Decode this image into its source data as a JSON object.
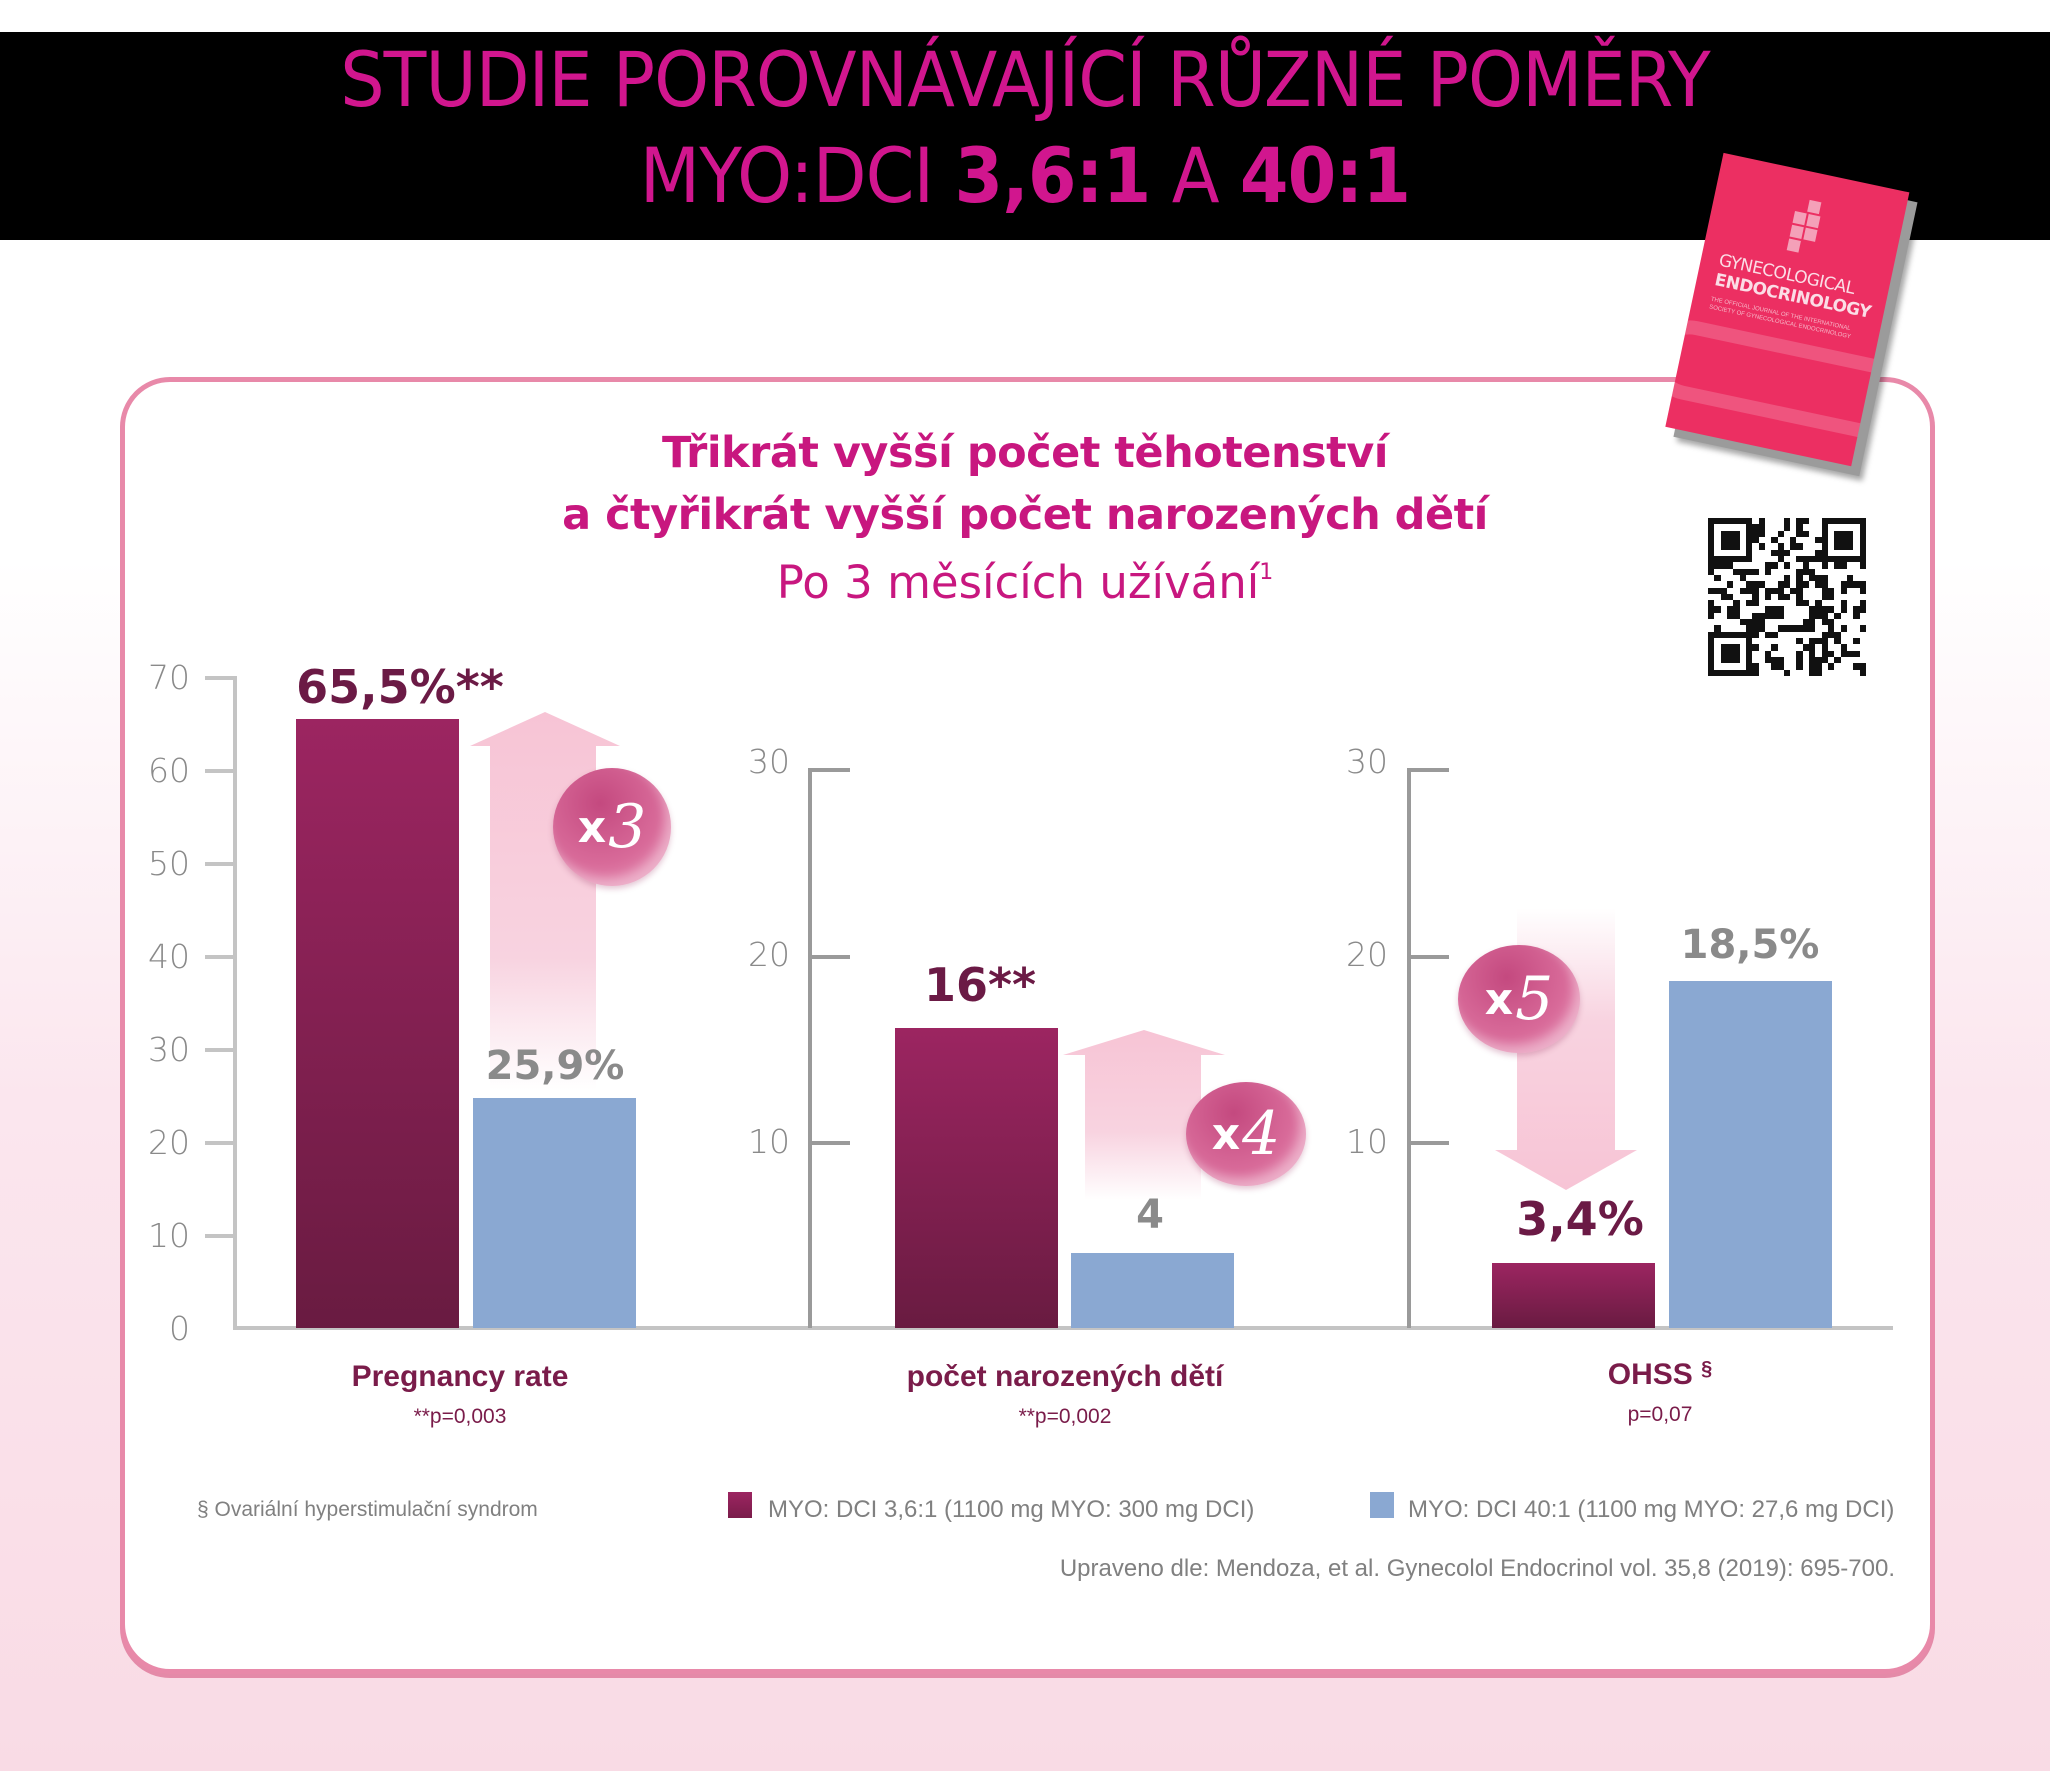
{
  "header": {
    "line1": "STUDIE POROVNÁVAJÍCÍ RŮZNÉ POMĚRY",
    "line2_prefix": "MYO:DCI ",
    "line2_ratio1": "3,6:1",
    "line2_and": " A ",
    "line2_ratio2": "40:1"
  },
  "journal": {
    "title_line1": "GYNECOLOGICAL",
    "title_line2": "ENDOCRINOLOGY",
    "subtitle": "THE OFFICIAL JOURNAL OF THE INTERNATIONAL SOCIETY OF GYNECOLOGICAL ENDOCRINOLOGY"
  },
  "chart_heading": {
    "line1": "Třikrát vyšší počet těhotenství",
    "line2": "a čtyřikrát vyšší počet narozených dětí",
    "line3": "Po 3 měsících užívání",
    "line3_sup": "1"
  },
  "colors": {
    "accent_magenta": "#c8177f",
    "myo_3_6_1": "#8a2155",
    "myo_40_1": "#8aa8d2",
    "card_border": "#e889a9",
    "arrow_pink": "#f7c4d5"
  },
  "chart_data": [
    {
      "type": "bar",
      "title": "Pregnancy rate",
      "note": "**p=0,003",
      "categories": [
        "Pregnancy rate"
      ],
      "series": [
        {
          "name": "MYO: DCI 3,6:1 (1100 mg MYO: 300 mg DCI)",
          "values": [
            65.5
          ],
          "label": "65,5%**"
        },
        {
          "name": "MYO: DCI 40:1 (1100 mg MYO: 27,6 mg DCI)",
          "values": [
            25.9
          ],
          "label": "25,9%"
        }
      ],
      "ylim": [
        0,
        70
      ],
      "yticks": [
        "0",
        "10",
        "20",
        "30",
        "40",
        "50",
        "60",
        "70"
      ],
      "annotation": "x3",
      "annotation_direction": "up"
    },
    {
      "type": "bar",
      "title": "počet narozených dětí",
      "note": "**p=0,002",
      "categories": [
        "počet narozených dětí"
      ],
      "series": [
        {
          "name": "MYO: DCI 3,6:1 (1100 mg MYO: 300 mg DCI)",
          "values": [
            16
          ],
          "label": "16**"
        },
        {
          "name": "MYO: DCI 40:1 (1100 mg MYO: 27,6 mg DCI)",
          "values": [
            4
          ],
          "label": "4"
        }
      ],
      "ylim": [
        0,
        30
      ],
      "yticks": [
        "10",
        "20",
        "30"
      ],
      "annotation": "x4",
      "annotation_direction": "up"
    },
    {
      "type": "bar",
      "title": "OHSS §",
      "note": "p=0,07",
      "categories": [
        "OHSS"
      ],
      "series": [
        {
          "name": "MYO: DCI 3,6:1 (1100 mg MYO: 300 mg DCI)",
          "values": [
            3.4
          ],
          "label": "3,4%"
        },
        {
          "name": "MYO: DCI 40:1 (1100 mg MYO: 27,6 mg DCI)",
          "values": [
            18.5
          ],
          "label": "18,5%"
        }
      ],
      "ylim": [
        0,
        30
      ],
      "yticks": [
        "10",
        "20",
        "30"
      ],
      "annotation": "x5",
      "annotation_direction": "down"
    }
  ],
  "panels": {
    "p1": {
      "yticks": [
        "70",
        "60",
        "50",
        "40",
        "30",
        "20",
        "10",
        "0"
      ],
      "val_a": "65,5%**",
      "val_b": "25,9%",
      "badge_x": "x",
      "badge_n": "3",
      "cat": "Pregnancy rate",
      "pval": "**p=0,003"
    },
    "p2": {
      "yticks": [
        "30",
        "20",
        "10"
      ],
      "val_a": "16**",
      "val_b": "4",
      "badge_x": "x",
      "badge_n": "4",
      "cat": "počet narozených dětí",
      "pval": "**p=0,002"
    },
    "p3": {
      "yticks": [
        "30",
        "20",
        "10"
      ],
      "val_a": "3,4%",
      "val_b": "18,5%",
      "badge_x": "x",
      "badge_n": "5",
      "cat": "OHSS",
      "cat_sup": "§",
      "pval": "p=0,07"
    }
  },
  "footer": {
    "footnote": "§ Ovariální hyperstimulační syndrom",
    "legend": [
      {
        "label": "MYO: DCI 3,6:1 (1100 mg MYO: 300 mg DCI)",
        "color": "#8a2155"
      },
      {
        "label": "MYO: DCI 40:1 (1100 mg MYO: 27,6 mg DCI)",
        "color": "#8aa8d2"
      }
    ],
    "source": "Upraveno dle: Mendoza, et al. Gynecolol Endocrinol vol. 35,8 (2019): 695-700."
  }
}
